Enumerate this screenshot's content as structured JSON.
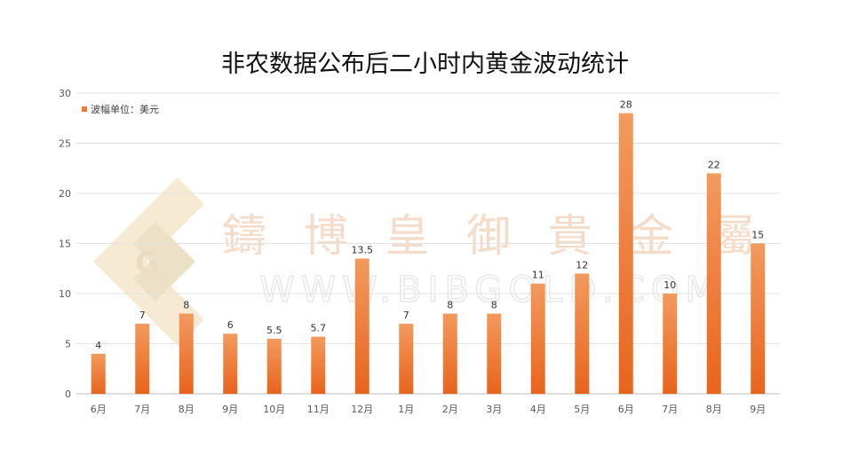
{
  "chart_data": {
    "type": "bar",
    "title": "非农数据公布后二小时内黄金波动统计",
    "categories": [
      "6月",
      "7月",
      "8月",
      "9月",
      "10月",
      "11月",
      "12月",
      "1月",
      "2月",
      "3月",
      "4月",
      "5月",
      "6月",
      "7月",
      "8月",
      "9月"
    ],
    "series": [
      {
        "name": "波幅单位：美元",
        "values": [
          4,
          7,
          8,
          6,
          5.5,
          5.7,
          13.5,
          7,
          8,
          8,
          11,
          12,
          28,
          10,
          22,
          15
        ]
      }
    ],
    "data_labels": [
      "4",
      "7",
      "8",
      "6",
      "5.5",
      "5.7",
      "13.5",
      "7",
      "8",
      "8",
      "11",
      "12",
      "28",
      "10",
      "22",
      "15"
    ],
    "yticks": [
      "0",
      "5",
      "10",
      "15",
      "20",
      "25",
      "30"
    ],
    "ylim": [
      0,
      30
    ],
    "grid": true,
    "legend_position": "top-left",
    "bar_color": "#f07a2e"
  },
  "watermark": {
    "chinese": "鑄博皇御貴金屬",
    "url": "WWW.BIBGOLD.COM",
    "logo_letter": "G"
  }
}
